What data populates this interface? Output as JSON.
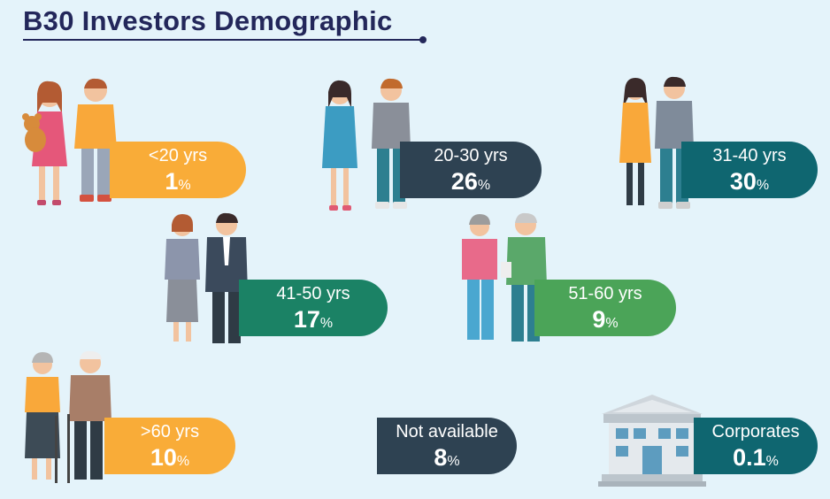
{
  "title": "B30 Investors Demographic",
  "groups": [
    {
      "label": "<20 yrs",
      "value": "1",
      "unit": "%",
      "color": "#f9ac38"
    },
    {
      "label": "20-30 yrs",
      "value": "26",
      "unit": "%",
      "color": "#2e4252"
    },
    {
      "label": "31-40 yrs",
      "value": "30",
      "unit": "%",
      "color": "#0f6670"
    },
    {
      "label": "41-50 yrs",
      "value": "17",
      "unit": "%",
      "color": "#1b8265"
    },
    {
      "label": "51-60 yrs",
      "value": "9",
      "unit": "%",
      "color": "#4ba458"
    },
    {
      "label": ">60 yrs",
      "value": "10",
      "unit": "%",
      "color": "#f9ac38"
    },
    {
      "label": "Not available",
      "value": "8",
      "unit": "%",
      "color": "#2e4252"
    },
    {
      "label": "Corporates",
      "value": "0.1",
      "unit": "%",
      "color": "#0f6670"
    }
  ]
}
